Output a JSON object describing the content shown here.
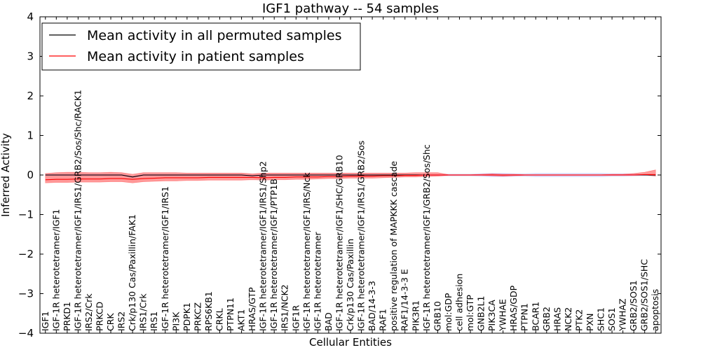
{
  "chart_data": {
    "type": "line",
    "title": "IGF1 pathway -- 54 samples",
    "xlabel": "Cellular Entities",
    "ylabel": "Inferred Activity",
    "ylim": [
      -4,
      4
    ],
    "yticks": [
      -4,
      -3,
      -2,
      -1,
      0,
      1,
      2,
      3,
      4
    ],
    "ytick_labels": [
      "−4",
      "−3",
      "−2",
      "−1",
      "0",
      "1",
      "2",
      "3",
      "4"
    ],
    "legend_position": "top-left",
    "colors": {
      "permuted": "#000000",
      "patient": "#ff0000",
      "patient_band": "#ff0000",
      "permuted_band": "#b0b0ff"
    },
    "categories": [
      "IGF1",
      "IGF-1R heterotetramer/IGF1",
      "PRKD1",
      "IGF-1R heterotetramer/IGF1/IRS1/GRB2/Sos/Shc/RACK1",
      "IRS2/Crk",
      "PRKCD",
      "CRK",
      "IRS2",
      "Crk/p130 Cas/Paxillin/FAK1",
      "IRS1/Crk",
      "IRS1",
      "IGF-1R heterotetramer/IGF1/IRS1",
      "PI3K",
      "PDPK1",
      "PRKCZ",
      "RPS6KB1",
      "CRKL",
      "PTPN11",
      "AKT1",
      "HRAS/GTP",
      "IGF-1R heterotetramer/IGF1/IRS1/Shp2",
      "IGF-1R heterotetramer/IGF1/PTP1B",
      "IRS1/NCK2",
      "IGF1R",
      "IGF-1R heterotetramer/IGF1/IRS/Nck",
      "IGF-1R heterotetramer",
      "BAD",
      "IGF-1R heterotetramer/IGF1/SHC/GRB10",
      "Crk/p130 Cas/Paxillin",
      "IGF-1R heterotetramer/IGF1/IRS1/GRB2/Sos",
      "BAD/14-3-3",
      "RAF1",
      "positive regulation of MAPKKK cascade",
      "RAF1/14-3-3 E",
      "PIK3R1",
      "IGF-1R heterotetramer/IGF1/GRB2/Sos/Shc",
      "GRB10",
      "mol:GDP",
      "cell adhesion",
      "mol:GTP",
      "GNB2L1",
      "PIK3CA",
      "YWHAE",
      "HRAS/GDP",
      "PTPN1",
      "BCAR1",
      "GRB2",
      "HRAS",
      "NCK2",
      "PTK2",
      "PXN",
      "SHC1",
      "SOS1",
      "YWHAZ",
      "GRB2/SOS1",
      "GRB2/SOS1/SHC",
      "apoptosis"
    ],
    "series": [
      {
        "name": "Mean activity in all permuted samples",
        "values": [
          0.0,
          0.0,
          0.0,
          0.0,
          0.0,
          0.0,
          0.0,
          0.0,
          -0.05,
          0.0,
          0.0,
          0.0,
          0.0,
          0.0,
          0.0,
          0.0,
          0.0,
          0.0,
          0.0,
          -0.02,
          0.0,
          0.0,
          0.0,
          0.0,
          0.0,
          0.0,
          0.0,
          0.0,
          0.0,
          0.0,
          0.0,
          0.0,
          0.0,
          0.0,
          0.0,
          0.0,
          0.0,
          0.0,
          0.0,
          0.0,
          0.0,
          0.0,
          0.0,
          0.0,
          0.0,
          0.0,
          0.0,
          0.0,
          0.0,
          0.0,
          0.0,
          0.0,
          0.0,
          0.0,
          0.0,
          0.0,
          0.0
        ]
      },
      {
        "name": "Mean activity in patient samples",
        "values": [
          -0.12,
          -0.11,
          -0.11,
          -0.1,
          -0.1,
          -0.1,
          -0.09,
          -0.09,
          -0.11,
          -0.09,
          -0.08,
          -0.07,
          -0.07,
          -0.07,
          -0.07,
          -0.06,
          -0.06,
          -0.06,
          -0.06,
          -0.06,
          -0.07,
          -0.06,
          -0.06,
          -0.05,
          -0.05,
          -0.05,
          -0.04,
          -0.04,
          -0.03,
          -0.03,
          -0.03,
          -0.02,
          -0.02,
          -0.01,
          -0.01,
          0.0,
          0.0,
          0.0,
          0.0,
          0.0,
          0.0,
          0.0,
          0.0,
          0.0,
          0.0,
          0.0,
          0.0,
          0.0,
          0.0,
          0.0,
          0.0,
          0.0,
          0.0,
          0.0,
          0.0,
          0.01,
          0.01
        ]
      }
    ],
    "patient_band": {
      "lower": [
        -0.2,
        -0.19,
        -0.19,
        -0.18,
        -0.18,
        -0.18,
        -0.17,
        -0.17,
        -0.2,
        -0.17,
        -0.16,
        -0.15,
        -0.15,
        -0.14,
        -0.14,
        -0.13,
        -0.13,
        -0.13,
        -0.13,
        -0.12,
        -0.13,
        -0.12,
        -0.12,
        -0.11,
        -0.11,
        -0.1,
        -0.09,
        -0.09,
        -0.08,
        -0.08,
        -0.08,
        -0.07,
        -0.06,
        -0.05,
        -0.05,
        -0.04,
        -0.03,
        -0.01,
        -0.01,
        -0.01,
        -0.01,
        -0.02,
        -0.03,
        -0.02,
        -0.01,
        -0.01,
        -0.01,
        -0.01,
        -0.01,
        -0.01,
        -0.01,
        -0.01,
        -0.01,
        -0.01,
        -0.01,
        0.0,
        -0.03
      ],
      "upper": [
        0.04,
        0.06,
        0.07,
        0.07,
        0.06,
        0.06,
        0.07,
        0.06,
        0.02,
        0.06,
        0.06,
        0.06,
        0.06,
        0.05,
        0.05,
        0.05,
        0.05,
        0.05,
        0.05,
        0.03,
        0.05,
        0.05,
        0.05,
        0.05,
        0.05,
        0.05,
        0.05,
        0.05,
        0.05,
        0.05,
        0.05,
        0.05,
        0.05,
        0.05,
        0.06,
        0.06,
        0.06,
        0.01,
        0.01,
        0.01,
        0.02,
        0.03,
        0.02,
        0.02,
        0.01,
        0.01,
        0.01,
        0.01,
        0.01,
        0.01,
        0.01,
        0.01,
        0.02,
        0.02,
        0.04,
        0.07,
        0.13
      ]
    },
    "permuted_band": {
      "lower": [
        -0.02,
        -0.02,
        -0.02,
        -0.02,
        -0.02,
        -0.02,
        -0.02,
        -0.02,
        -0.07,
        -0.02,
        -0.02,
        -0.02,
        -0.02,
        -0.02,
        -0.02,
        -0.02,
        -0.02,
        -0.02,
        -0.02,
        -0.04,
        -0.02,
        -0.02,
        -0.02,
        -0.02,
        -0.02,
        -0.02,
        -0.02,
        -0.02,
        -0.02,
        -0.02,
        -0.02,
        -0.02,
        -0.02,
        -0.02,
        -0.02,
        -0.02,
        -0.02,
        -0.03,
        -0.03,
        -0.03,
        -0.04,
        -0.05,
        -0.05,
        -0.04,
        -0.04,
        -0.05,
        -0.05,
        -0.05,
        -0.05,
        -0.05,
        -0.05,
        -0.05,
        -0.04,
        -0.04,
        -0.03,
        -0.02,
        -0.02
      ],
      "upper": [
        0.02,
        0.02,
        0.02,
        0.02,
        0.02,
        0.02,
        0.02,
        0.02,
        -0.03,
        0.02,
        0.02,
        0.02,
        0.02,
        0.02,
        0.02,
        0.02,
        0.02,
        0.02,
        0.02,
        0.0,
        0.02,
        0.02,
        0.02,
        0.02,
        0.02,
        0.02,
        0.02,
        0.02,
        0.02,
        0.02,
        0.02,
        0.02,
        0.02,
        0.02,
        0.02,
        0.02,
        0.02,
        0.03,
        0.03,
        0.03,
        0.04,
        0.05,
        0.05,
        0.04,
        0.04,
        0.05,
        0.05,
        0.05,
        0.05,
        0.05,
        0.05,
        0.05,
        0.04,
        0.04,
        0.03,
        0.02,
        0.02
      ]
    }
  }
}
